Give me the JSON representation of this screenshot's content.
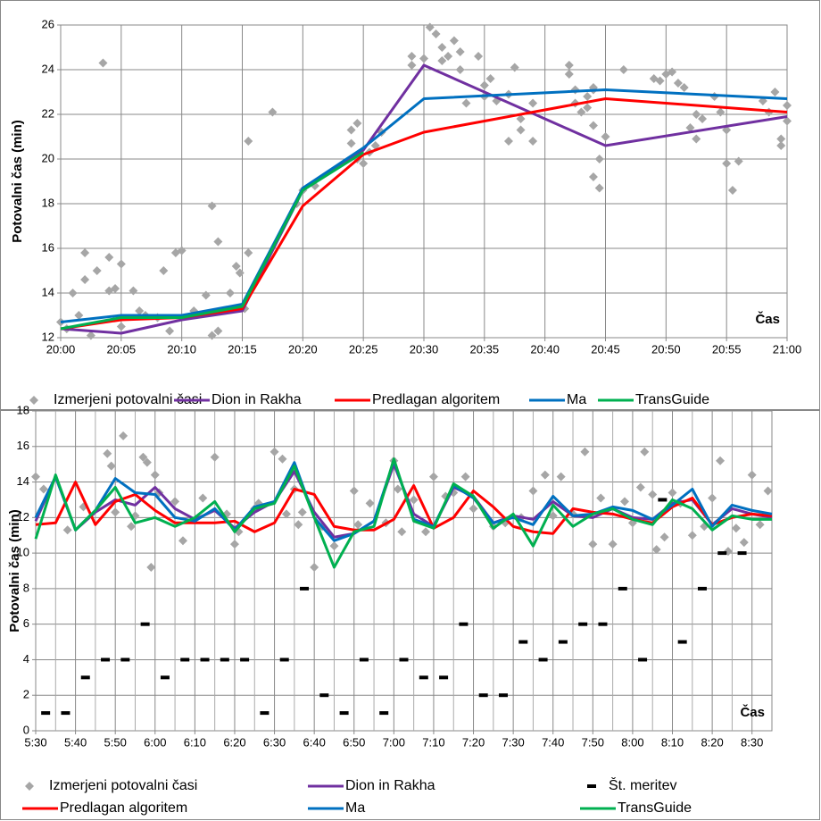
{
  "chart_data": [
    {
      "type": "line",
      "x_label": "Čas",
      "y_label": "Potovalni čas (min)",
      "xlim": [
        0,
        60
      ],
      "xticks": [
        {
          "value": 0,
          "label": "20:00"
        },
        {
          "value": 5,
          "label": "20:05"
        },
        {
          "value": 10,
          "label": "20:10"
        },
        {
          "value": 15,
          "label": "20:15"
        },
        {
          "value": 20,
          "label": "20:20"
        },
        {
          "value": 25,
          "label": "20:25"
        },
        {
          "value": 30,
          "label": "20:30"
        },
        {
          "value": 35,
          "label": "20:35"
        },
        {
          "value": 40,
          "label": "20:40"
        },
        {
          "value": 45,
          "label": "20:45"
        },
        {
          "value": 50,
          "label": "20:50"
        },
        {
          "value": 55,
          "label": "20:55"
        },
        {
          "value": 60,
          "label": "21:00"
        }
      ],
      "ylim": [
        12,
        26
      ],
      "yticks": [
        12,
        14,
        16,
        18,
        20,
        22,
        24,
        26
      ],
      "grid": true,
      "series": [
        {
          "name": "Izmerjeni potovalni časi",
          "type": "scatter",
          "color": "#a6a6a6",
          "x": [
            0,
            0.5,
            1,
            1.5,
            2,
            2,
            2.5,
            3,
            3.5,
            4,
            4,
            4.5,
            5,
            5,
            6,
            6.5,
            7,
            8,
            8.5,
            9,
            9.5,
            10,
            11,
            12,
            12.5,
            12.5,
            13,
            13,
            14,
            14.5,
            14.8,
            15.2,
            15.5,
            15.5,
            17.5,
            19.5,
            20,
            21,
            24,
            24,
            24.5,
            24.5,
            25,
            25.5,
            26,
            26.5,
            29,
            29,
            30,
            30.5,
            31,
            31.5,
            31.5,
            32,
            32.5,
            33,
            33,
            33.5,
            34.5,
            35,
            35,
            35.5,
            36,
            37,
            37,
            37.5,
            38,
            38,
            39,
            39,
            42,
            42,
            42.5,
            42.5,
            43,
            43.5,
            43.5,
            44,
            44,
            44,
            44,
            44.5,
            44.5,
            45,
            46.5,
            49,
            49.5,
            50,
            50.5,
            51,
            51.5,
            52,
            52.5,
            52.5,
            53,
            54,
            54.5,
            55,
            55,
            55.5,
            56,
            58,
            58.5,
            59,
            59.5,
            59.5,
            60,
            60
          ],
          "values": [
            12.7,
            12.4,
            14.0,
            13.0,
            15.8,
            14.6,
            12.1,
            15.0,
            24.3,
            15.6,
            14.1,
            14.2,
            15.3,
            12.5,
            14.1,
            13.2,
            13.0,
            12.9,
            15.0,
            12.3,
            15.8,
            15.9,
            13.2,
            13.9,
            12.1,
            17.9,
            16.3,
            12.3,
            14.0,
            15.2,
            14.9,
            13.3,
            20.8,
            15.8,
            22.1,
            18.0,
            18.6,
            18.8,
            20.7,
            21.3,
            21.6,
            20.0,
            19.8,
            20.3,
            20.6,
            21.2,
            24.6,
            24.2,
            24.5,
            25.9,
            25.6,
            25.0,
            24.4,
            24.6,
            25.3,
            24.0,
            24.8,
            22.5,
            24.6,
            23.3,
            22.8,
            23.6,
            22.6,
            22.9,
            20.8,
            24.1,
            21.3,
            21.8,
            20.8,
            22.5,
            24.2,
            23.8,
            22.5,
            23.1,
            22.1,
            22.8,
            22.3,
            23.1,
            23.2,
            21.5,
            19.2,
            20.0,
            18.7,
            21.0,
            24.0,
            23.6,
            23.5,
            23.8,
            23.9,
            23.4,
            23.2,
            21.4,
            22.0,
            20.9,
            21.8,
            22.8,
            22.1,
            21.3,
            19.8,
            18.6,
            19.9,
            22.6,
            22.1,
            23.0,
            20.6,
            20.9,
            22.4,
            21.7
          ]
        },
        {
          "name": "Dion in Rakha",
          "type": "line",
          "color": "#7030a0",
          "x": [
            0,
            5,
            10,
            15,
            20,
            25,
            30,
            45,
            60
          ],
          "values": [
            12.4,
            12.2,
            12.8,
            13.2,
            18.6,
            20.4,
            24.2,
            20.6,
            21.9
          ]
        },
        {
          "name": "Predlagan algoritem",
          "type": "line",
          "color": "#ff0000",
          "x": [
            0,
            5,
            10,
            15,
            20,
            25,
            30,
            45,
            60
          ],
          "values": [
            12.4,
            12.8,
            12.9,
            13.3,
            17.9,
            20.2,
            21.2,
            22.7,
            22.1
          ]
        },
        {
          "name": "Ma",
          "type": "line",
          "color": "#0070c0",
          "x": [
            0,
            5,
            10,
            15,
            20,
            25,
            30,
            45,
            60
          ],
          "values": [
            12.7,
            13.0,
            13.0,
            13.5,
            18.7,
            20.5,
            22.7,
            23.1,
            22.7
          ]
        },
        {
          "name": "TransGuide",
          "type": "line",
          "color": "#00b050",
          "x": [
            0,
            5,
            10,
            15,
            20,
            25,
            30,
            45,
            60
          ],
          "values": [
            12.4,
            12.9,
            12.9,
            13.4,
            18.6,
            20.3,
            null,
            null,
            null
          ]
        }
      ]
    },
    {
      "type": "line",
      "x_label": "Čas",
      "y_label": "Potovalni čas (min)",
      "xlim": [
        0,
        185
      ],
      "xticks": [
        {
          "value": 0,
          "label": "5:30"
        },
        {
          "value": 10,
          "label": "5:40"
        },
        {
          "value": 20,
          "label": "5:50"
        },
        {
          "value": 30,
          "label": "6:00"
        },
        {
          "value": 40,
          "label": "6:10"
        },
        {
          "value": 50,
          "label": "6:20"
        },
        {
          "value": 60,
          "label": "6:30"
        },
        {
          "value": 70,
          "label": "6:40"
        },
        {
          "value": 80,
          "label": "6:50"
        },
        {
          "value": 90,
          "label": "7:00"
        },
        {
          "value": 100,
          "label": "7:10"
        },
        {
          "value": 110,
          "label": "7:20"
        },
        {
          "value": 120,
          "label": "7:30"
        },
        {
          "value": 130,
          "label": "7:40"
        },
        {
          "value": 140,
          "label": "7:50"
        },
        {
          "value": 150,
          "label": "8:00"
        },
        {
          "value": 160,
          "label": "8:10"
        },
        {
          "value": 170,
          "label": "8:20"
        },
        {
          "value": 180,
          "label": "8:30"
        }
      ],
      "ylim": [
        0,
        18
      ],
      "yticks": [
        0,
        2,
        4,
        6,
        8,
        10,
        12,
        14,
        16,
        18
      ],
      "grid": true,
      "minor_grid": true,
      "series": [
        {
          "name": "Izmerjeni potovalni časi",
          "type": "scatter",
          "color": "#a6a6a6",
          "x": [
            0,
            2,
            8,
            12,
            18,
            19,
            20,
            22,
            24,
            25,
            27,
            28,
            29,
            30,
            31,
            35,
            37,
            42,
            45,
            48,
            50,
            51,
            55,
            56,
            60,
            62,
            63,
            65,
            66,
            67,
            70,
            72,
            75,
            80,
            81,
            84,
            88,
            90,
            91,
            92,
            95,
            98,
            100,
            103,
            105,
            108,
            110,
            115,
            118,
            122,
            125,
            128,
            130,
            132,
            135,
            138,
            140,
            142,
            145,
            148,
            150,
            152,
            153,
            155,
            156,
            158,
            160,
            162,
            165,
            168,
            170,
            172,
            174,
            176,
            178,
            180,
            182,
            184
          ],
          "values": [
            14.3,
            13.6,
            11.3,
            12.6,
            15.6,
            14.9,
            12.3,
            16.6,
            11.5,
            12.1,
            15.4,
            15.1,
            9.2,
            14.4,
            13.4,
            12.9,
            10.7,
            13.1,
            15.4,
            12.2,
            10.5,
            11.2,
            12.5,
            12.8,
            15.7,
            15.3,
            12.2,
            13.6,
            11.6,
            12.3,
            9.2,
            11.5,
            10.4,
            13.5,
            11.6,
            12.8,
            11.7,
            15.2,
            13.6,
            11.2,
            13.0,
            11.2,
            14.3,
            13.2,
            13.4,
            14.3,
            12.5,
            11.5,
            11.7,
            12.0,
            13.5,
            14.4,
            12.1,
            14.3,
            12.2,
            15.7,
            10.5,
            13.1,
            10.5,
            12.9,
            11.7,
            13.7,
            15.7,
            13.3,
            10.2,
            10.9,
            13.4,
            12.8,
            11.0,
            11.5,
            13.1,
            15.2,
            10.1,
            11.4,
            10.6,
            14.4,
            11.6,
            13.5
          ]
        },
        {
          "name": "Dion in Rakha",
          "type": "line",
          "color": "#7030a0",
          "x": [
            0,
            5,
            10,
            15,
            20,
            25,
            30,
            35,
            40,
            45,
            50,
            55,
            60,
            65,
            70,
            75,
            80,
            85,
            90,
            95,
            100,
            105,
            110,
            115,
            120,
            125,
            130,
            135,
            140,
            145,
            150,
            155,
            160,
            165,
            170,
            175,
            180,
            185
          ],
          "values": [
            11.8,
            14.3,
            11.3,
            12.3,
            13.0,
            12.7,
            13.7,
            12.5,
            11.9,
            12.4,
            11.4,
            12.3,
            12.9,
            14.6,
            12.3,
            10.9,
            11.1,
            11.8,
            15.0,
            12.2,
            11.5,
            13.7,
            13.2,
            11.7,
            12.1,
            11.9,
            12.9,
            12.1,
            12.0,
            12.5,
            12.0,
            11.9,
            12.8,
            13.0,
            11.6,
            12.5,
            12.2,
            12.0
          ]
        },
        {
          "name": "Št. meritev",
          "type": "dash",
          "color": "#000000",
          "x": [
            2.5,
            7.5,
            12.5,
            17.5,
            22.5,
            27.5,
            32.5,
            37.5,
            42.5,
            47.5,
            52.5,
            57.5,
            62.5,
            67.5,
            72.5,
            77.5,
            82.5,
            87.5,
            92.5,
            97.5,
            102.5,
            107.5,
            112.5,
            117.5,
            122.5,
            127.5,
            132.5,
            137.5,
            142.5,
            147.5,
            152.5,
            157.5,
            162.5,
            167.5,
            172.5,
            177.5
          ],
          "values": [
            1,
            1,
            3,
            4,
            4,
            6,
            3,
            4,
            4,
            4,
            4,
            1,
            4,
            8,
            2,
            1,
            4,
            1,
            4,
            3,
            3,
            6,
            2,
            2,
            5,
            4,
            5,
            6,
            6,
            8,
            4,
            13,
            5,
            8,
            10,
            10
          ]
        },
        {
          "name": "Predlagan algoritem",
          "type": "line",
          "color": "#ff0000",
          "x": [
            0,
            5,
            10,
            15,
            20,
            25,
            30,
            35,
            40,
            45,
            50,
            55,
            60,
            65,
            70,
            75,
            80,
            85,
            90,
            95,
            100,
            105,
            110,
            115,
            120,
            125,
            130,
            135,
            140,
            145,
            150,
            155,
            160,
            165,
            170,
            175,
            180,
            185
          ],
          "values": [
            11.6,
            11.7,
            14.0,
            11.6,
            12.9,
            13.3,
            12.4,
            11.7,
            11.7,
            11.7,
            11.8,
            11.2,
            11.7,
            13.6,
            13.3,
            11.5,
            11.3,
            11.3,
            11.9,
            13.8,
            11.4,
            12.0,
            13.5,
            12.6,
            11.5,
            11.2,
            11.1,
            12.5,
            12.3,
            12.2,
            11.9,
            11.7,
            12.6,
            13.1,
            11.6,
            12.0,
            12.2,
            12.1
          ]
        },
        {
          "name": "Ma",
          "type": "line",
          "color": "#0070c0",
          "x": [
            0,
            5,
            10,
            15,
            20,
            25,
            30,
            35,
            40,
            45,
            50,
            55,
            60,
            65,
            70,
            75,
            80,
            85,
            90,
            95,
            100,
            105,
            110,
            115,
            120,
            125,
            130,
            135,
            140,
            145,
            150,
            155,
            160,
            165,
            170,
            175,
            180,
            185
          ],
          "values": [
            12.0,
            14.3,
            11.3,
            12.4,
            14.2,
            13.4,
            13.3,
            12.0,
            11.8,
            12.5,
            11.3,
            12.6,
            12.9,
            15.1,
            12.0,
            10.7,
            11.1,
            11.8,
            15.2,
            11.9,
            11.5,
            13.8,
            13.1,
            11.7,
            12.0,
            11.6,
            13.2,
            12.1,
            12.2,
            12.6,
            12.4,
            11.9,
            12.7,
            13.6,
            11.5,
            12.7,
            12.4,
            12.2
          ]
        },
        {
          "name": "TransGuide",
          "type": "line",
          "color": "#00b050",
          "x": [
            0,
            5,
            10,
            15,
            20,
            25,
            30,
            35,
            40,
            45,
            50,
            55,
            60,
            65,
            70,
            75,
            80,
            85,
            90,
            95,
            100,
            105,
            110,
            115,
            120,
            125,
            130,
            135,
            140,
            145,
            150,
            155,
            160,
            165,
            170,
            175,
            180,
            185
          ],
          "values": [
            10.8,
            14.4,
            11.3,
            12.4,
            13.7,
            11.7,
            12.0,
            11.5,
            12.0,
            12.9,
            11.2,
            12.5,
            12.8,
            14.9,
            12.0,
            9.2,
            11.2,
            11.5,
            15.3,
            11.8,
            11.4,
            13.9,
            13.2,
            11.4,
            12.2,
            10.4,
            12.7,
            11.5,
            12.2,
            12.5,
            11.9,
            11.6,
            13.0,
            12.5,
            11.3,
            12.1,
            11.9,
            11.9
          ]
        }
      ]
    }
  ]
}
